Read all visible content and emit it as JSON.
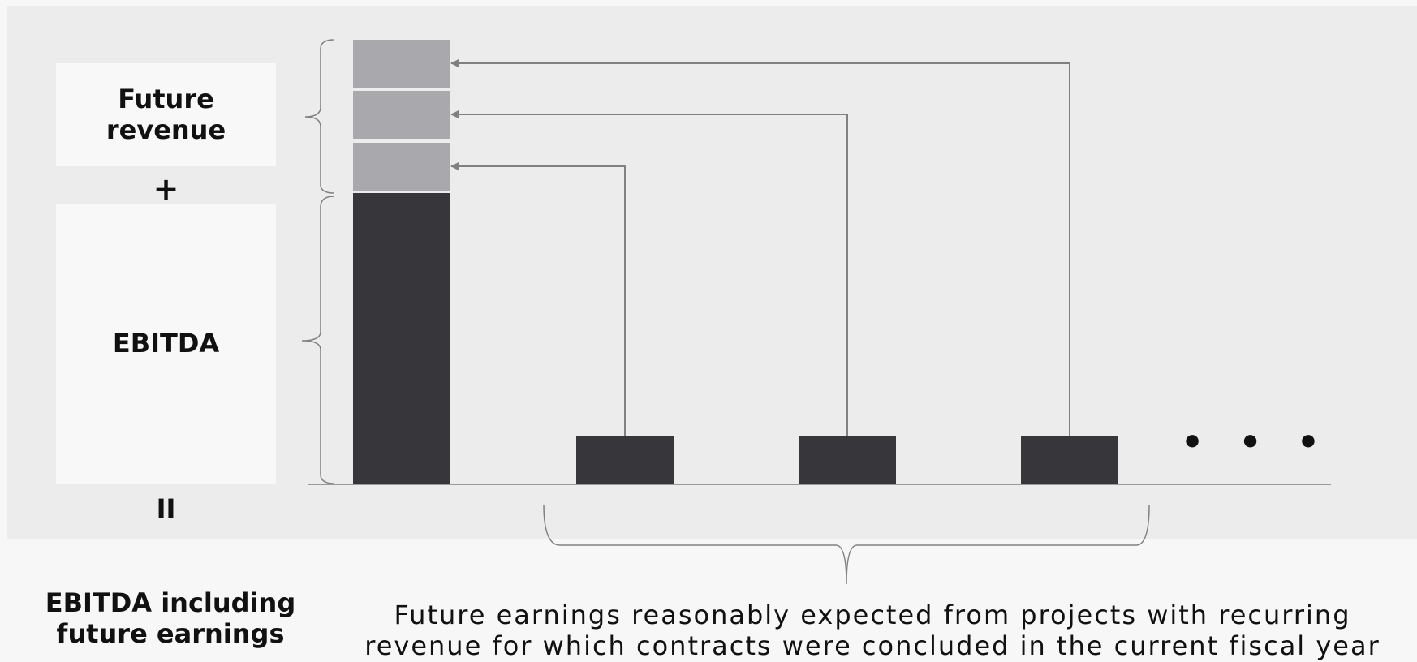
{
  "left_boxes": {
    "future_revenue": "Future\nrevenue",
    "plus": "+",
    "ebitda": "EBITDA",
    "equals": "II"
  },
  "result_label": "EBITDA including\nfuture earnings",
  "description": "Future earnings reasonably expected from projects with recurring\nrevenue for which contracts were concluded in the current fiscal year",
  "continuation": "• • •",
  "colors": {
    "dark_bar": "#37373b",
    "light_segment": "#a9a9ad",
    "arrow": "#808080",
    "panel": "#ececed"
  }
}
